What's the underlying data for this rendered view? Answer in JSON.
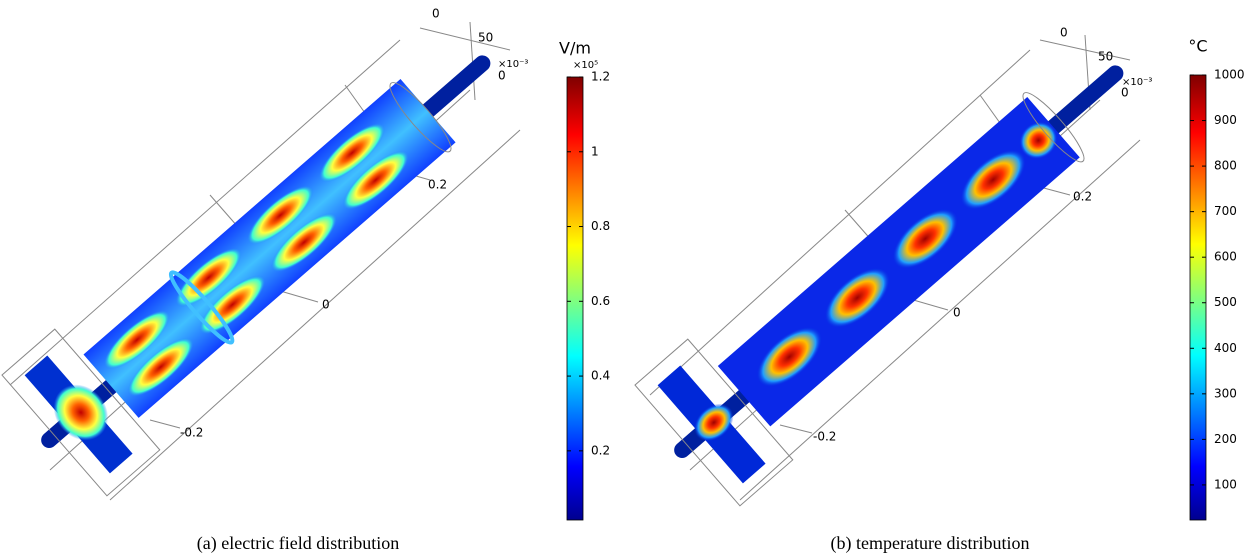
{
  "panels": [
    {
      "caption": "(a) electric field distribution",
      "axis_labels": [
        "0",
        "50",
        "×10⁻³",
        "0",
        "0.2",
        "0",
        "-0.2"
      ],
      "colorbar": {
        "unit": "V/m",
        "multiplier": "×10⁵",
        "range": [
          0.015,
          1.2
        ],
        "ticks": [
          0.2,
          0.4,
          0.6,
          0.8,
          1,
          1.2
        ]
      }
    },
    {
      "caption": "(b) temperature distribution",
      "axis_labels": [
        "0",
        "50",
        "×10⁻³",
        "0",
        "0.2",
        "0",
        "-0.2"
      ],
      "colorbar": {
        "unit": "°C",
        "range": [
          23,
          1000
        ],
        "ticks": [
          100,
          200,
          300,
          400,
          500,
          600,
          700,
          800,
          900,
          1000
        ]
      }
    }
  ]
}
